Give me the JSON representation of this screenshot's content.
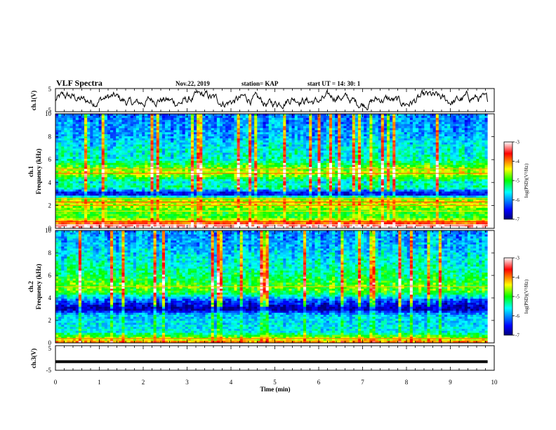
{
  "header": {
    "title": "VLF Spectra",
    "date": "Nov.22, 2019",
    "station": "station= KAP",
    "start": "start  UT =   14: 30: 1"
  },
  "chart_data": [
    {
      "type": "line",
      "panel": "ch1-waveform",
      "ylabel": "ch.1(V)",
      "ylim": [
        -5,
        5
      ],
      "yticks": [
        "5",
        "-5"
      ],
      "xlim": [
        0,
        10
      ],
      "description_values": {
        "mean": 0,
        "amplitude_approx": 3,
        "end_time_min": 9.85
      },
      "line_color": "#000000"
    },
    {
      "type": "heatmap",
      "panel": "ch1-spectrogram",
      "ylabel": "ch.1\nFrequency (kHz)",
      "ylabel_line1": "ch.1",
      "ylabel_line2": "Frequency (kHz)",
      "ylim": [
        0,
        10
      ],
      "yticks": [
        "0",
        "2",
        "4",
        "6",
        "8",
        "10"
      ],
      "xlim": [
        0,
        10
      ],
      "colorbar": {
        "label": "log(PSD)(V²/Hz)",
        "range": [
          -7,
          -3
        ],
        "ticks": [
          "-3",
          "-4",
          "-5",
          "-6",
          "-7"
        ]
      },
      "bands_khz": [
        {
          "f": 0.3,
          "level": -3.5
        },
        {
          "f": 0.6,
          "level": -4.2
        },
        {
          "f": 1.0,
          "level": -5.0
        },
        {
          "f": 1.5,
          "level": -4.9
        },
        {
          "f": 2.0,
          "level": -4.6
        },
        {
          "f": 2.3,
          "level": -4.4
        },
        {
          "f": 2.6,
          "level": -4.8
        },
        {
          "f": 3.0,
          "level": -6.8
        },
        {
          "f": 3.6,
          "level": -5.3
        },
        {
          "f": 4.0,
          "level": -5.6
        },
        {
          "f": 4.8,
          "level": -4.5
        },
        {
          "f": 5.2,
          "level": -4.7
        },
        {
          "f": 6.0,
          "level": -5.5
        },
        {
          "f": 7.0,
          "level": -5.6
        },
        {
          "f": 8.0,
          "level": -5.9
        },
        {
          "f": 9.0,
          "level": -6.0
        },
        {
          "f": 10.0,
          "level": -6.1
        }
      ]
    },
    {
      "type": "heatmap",
      "panel": "ch2-spectrogram",
      "ylabel_line1": "ch.2",
      "ylabel_line2": "Frequency (kHz)",
      "ylim": [
        0,
        10
      ],
      "yticks": [
        "0",
        "2",
        "4",
        "6",
        "8",
        "10"
      ],
      "xlim": [
        0,
        10
      ],
      "colorbar": {
        "label": "log(PSD)(V²/Hz)",
        "range": [
          -7,
          -3
        ],
        "ticks": [
          "-3",
          "-4",
          "-5",
          "-6",
          "-7"
        ]
      },
      "bands_khz": [
        {
          "f": 0.4,
          "level": -4.6
        },
        {
          "f": 1.0,
          "level": -5.6
        },
        {
          "f": 1.8,
          "level": -5.7
        },
        {
          "f": 2.5,
          "level": -5.8
        },
        {
          "f": 3.0,
          "level": -6.9
        },
        {
          "f": 3.8,
          "level": -6.2
        },
        {
          "f": 4.5,
          "level": -5.0
        },
        {
          "f": 5.0,
          "level": -4.8
        },
        {
          "f": 5.8,
          "level": -5.2
        },
        {
          "f": 7.0,
          "level": -5.5
        },
        {
          "f": 8.0,
          "level": -5.7
        },
        {
          "f": 9.0,
          "level": -5.9
        },
        {
          "f": 10.0,
          "level": -6.0
        }
      ]
    },
    {
      "type": "line",
      "panel": "ch3-waveform",
      "ylabel": "ch.3(V)",
      "ylim": [
        -5,
        5
      ],
      "yticks": [
        "5",
        "-5"
      ],
      "xlim": [
        0,
        10
      ],
      "constant_value": -1.5,
      "end_time_min": 9.85,
      "xlabel": "Time  (min)",
      "xticks": [
        "0",
        "1",
        "2",
        "3",
        "4",
        "5",
        "6",
        "7",
        "8",
        "9",
        "10"
      ]
    }
  ]
}
